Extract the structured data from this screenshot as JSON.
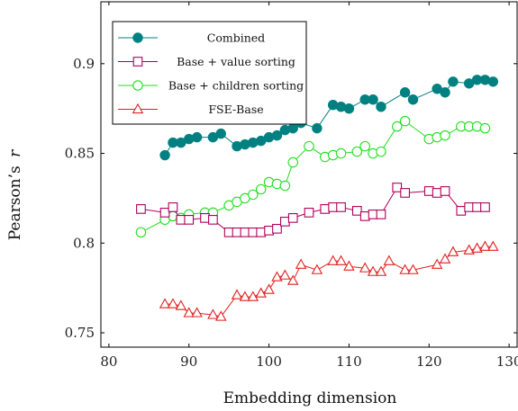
{
  "chart_data": {
    "type": "line",
    "title": "",
    "xlabel": "Embedding dimension",
    "ylabel": "Pearson’s r",
    "ylabel_main": "Pearson’s",
    "ylabel_var": "r",
    "xlim": [
      79,
      131
    ],
    "ylim": [
      0.742,
      0.9345
    ],
    "xticks": [
      80,
      90,
      100,
      110,
      120,
      130
    ],
    "yticks": [
      0.75,
      0.8,
      0.85,
      0.9
    ],
    "xtick_labels": [
      "80",
      "90",
      "100",
      "110",
      "120",
      "130"
    ],
    "ytick_labels": [
      "0.75",
      "0.8",
      "0.85",
      "0.9"
    ],
    "grid": false,
    "legend_position": "top-left",
    "series": [
      {
        "name": "Combined",
        "color": "#008080",
        "marker": "filled-circle",
        "x": [
          87,
          88,
          89,
          90,
          91,
          93,
          94,
          96,
          97,
          98,
          99,
          100,
          101,
          102,
          103,
          104,
          106,
          108,
          109,
          110,
          112,
          113,
          114,
          117,
          118,
          121,
          122,
          123,
          125,
          126,
          127,
          128
        ],
        "y": [
          0.849,
          0.856,
          0.856,
          0.858,
          0.859,
          0.859,
          0.861,
          0.854,
          0.855,
          0.856,
          0.857,
          0.859,
          0.86,
          0.863,
          0.864,
          0.867,
          0.864,
          0.877,
          0.876,
          0.875,
          0.88,
          0.88,
          0.876,
          0.884,
          0.88,
          0.886,
          0.884,
          0.89,
          0.889,
          0.891,
          0.891,
          0.89
        ]
      },
      {
        "name": "Base + value sorting",
        "color": "#b0005a",
        "marker": "open-square",
        "x": [
          84,
          87,
          88,
          89,
          90,
          92,
          93,
          95,
          96,
          97,
          98,
          99,
          100,
          101,
          102,
          103,
          105,
          107,
          108,
          109,
          111,
          112,
          113,
          114,
          116,
          117,
          120,
          121,
          122,
          124,
          125,
          126,
          127
        ],
        "y": [
          0.819,
          0.817,
          0.82,
          0.813,
          0.813,
          0.814,
          0.813,
          0.806,
          0.806,
          0.806,
          0.806,
          0.806,
          0.807,
          0.808,
          0.812,
          0.814,
          0.817,
          0.819,
          0.82,
          0.82,
          0.818,
          0.815,
          0.816,
          0.816,
          0.831,
          0.828,
          0.829,
          0.828,
          0.829,
          0.818,
          0.82,
          0.82,
          0.82
        ]
      },
      {
        "name": "Base + children sorting",
        "color": "#22dd22",
        "marker": "open-circle",
        "x": [
          84,
          87,
          88,
          89,
          90,
          92,
          93,
          95,
          96,
          97,
          98,
          99,
          100,
          101,
          102,
          103,
          105,
          107,
          108,
          109,
          111,
          112,
          113,
          114,
          116,
          117,
          120,
          121,
          122,
          124,
          125,
          126,
          127
        ],
        "y": [
          0.806,
          0.813,
          0.815,
          0.814,
          0.816,
          0.817,
          0.817,
          0.821,
          0.823,
          0.825,
          0.827,
          0.83,
          0.834,
          0.833,
          0.832,
          0.845,
          0.854,
          0.848,
          0.849,
          0.85,
          0.851,
          0.854,
          0.85,
          0.851,
          0.865,
          0.868,
          0.858,
          0.859,
          0.86,
          0.865,
          0.865,
          0.865,
          0.864
        ]
      },
      {
        "name": "FSE-Base",
        "color": "#e02020",
        "marker": "open-triangle",
        "x": [
          87,
          88,
          89,
          90,
          91,
          93,
          94,
          96,
          97,
          98,
          99,
          100,
          101,
          102,
          103,
          104,
          106,
          108,
          109,
          110,
          112,
          113,
          114,
          115,
          117,
          118,
          121,
          122,
          123,
          125,
          126,
          127,
          128
        ],
        "y": [
          0.766,
          0.766,
          0.765,
          0.761,
          0.761,
          0.76,
          0.759,
          0.771,
          0.77,
          0.77,
          0.772,
          0.774,
          0.781,
          0.782,
          0.779,
          0.788,
          0.785,
          0.79,
          0.79,
          0.787,
          0.786,
          0.784,
          0.784,
          0.79,
          0.785,
          0.785,
          0.788,
          0.791,
          0.795,
          0.796,
          0.797,
          0.798,
          0.798
        ]
      }
    ]
  }
}
